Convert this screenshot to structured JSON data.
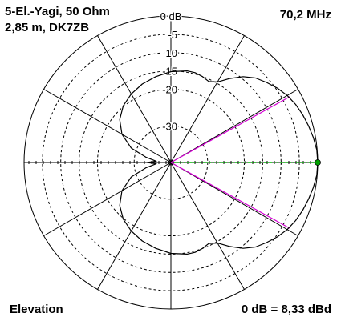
{
  "header": {
    "title_line1": "5-El.-Yagi, 50 Ohm",
    "title_line2": "2,85 m, DK7ZB",
    "frequency": "70,2 MHz"
  },
  "footer": {
    "view": "Elevation",
    "reference": "0 dB = 8,33 dBd"
  },
  "colors": {
    "grid": "#000000",
    "rings": "#000000",
    "pattern": "#000000",
    "beamwidth_lines": "#d400d4",
    "boresight_line": "#00c000",
    "marker": "#00a000"
  },
  "chart_data": {
    "type": "polar",
    "view": "Elevation",
    "rlim_db": [
      -40,
      0
    ],
    "ring_levels_db": [
      0,
      -5,
      -10,
      -15,
      -20,
      -30
    ],
    "ring_labels": [
      "0 dB",
      "-5",
      "-10",
      "-15",
      "-20",
      "-30"
    ],
    "spoke_angles_deg": [
      0,
      30,
      60,
      90,
      120,
      150,
      180,
      210,
      240,
      270,
      300,
      330
    ],
    "half_power_angles_deg": [
      -29,
      29
    ],
    "boresight_angle_deg": 0,
    "max_gain_db": 0,
    "series": [
      {
        "points": [
          {
            "angle": 0,
            "db": 0
          },
          {
            "angle": 5,
            "db": -0.1
          },
          {
            "angle": 10,
            "db": -0.6
          },
          {
            "angle": 15,
            "db": -1.2
          },
          {
            "angle": 20,
            "db": -1.8
          },
          {
            "angle": 25,
            "db": -2.5
          },
          {
            "angle": 30,
            "db": -3.4
          },
          {
            "angle": 35,
            "db": -4.6
          },
          {
            "angle": 40,
            "db": -6.0
          },
          {
            "angle": 45,
            "db": -7.4
          },
          {
            "angle": 50,
            "db": -9.4
          },
          {
            "angle": 55,
            "db": -12.0
          },
          {
            "angle": 60,
            "db": -14.6
          },
          {
            "angle": 65,
            "db": -15.6
          },
          {
            "angle": 70,
            "db": -15.0
          },
          {
            "angle": 75,
            "db": -14.6
          },
          {
            "angle": 80,
            "db": -14.6
          },
          {
            "angle": 90,
            "db": -15.2
          },
          {
            "angle": 100,
            "db": -16.2
          },
          {
            "angle": 110,
            "db": -17.2
          },
          {
            "angle": 120,
            "db": -18.4
          },
          {
            "angle": 130,
            "db": -19.8
          },
          {
            "angle": 140,
            "db": -21.8
          },
          {
            "angle": 150,
            "db": -24.6
          },
          {
            "angle": 160,
            "db": -28.5
          },
          {
            "angle": 168,
            "db": -33.0
          },
          {
            "angle": 175,
            "db": -36.0
          },
          {
            "angle": 180,
            "db": -33.5
          }
        ]
      }
    ]
  }
}
